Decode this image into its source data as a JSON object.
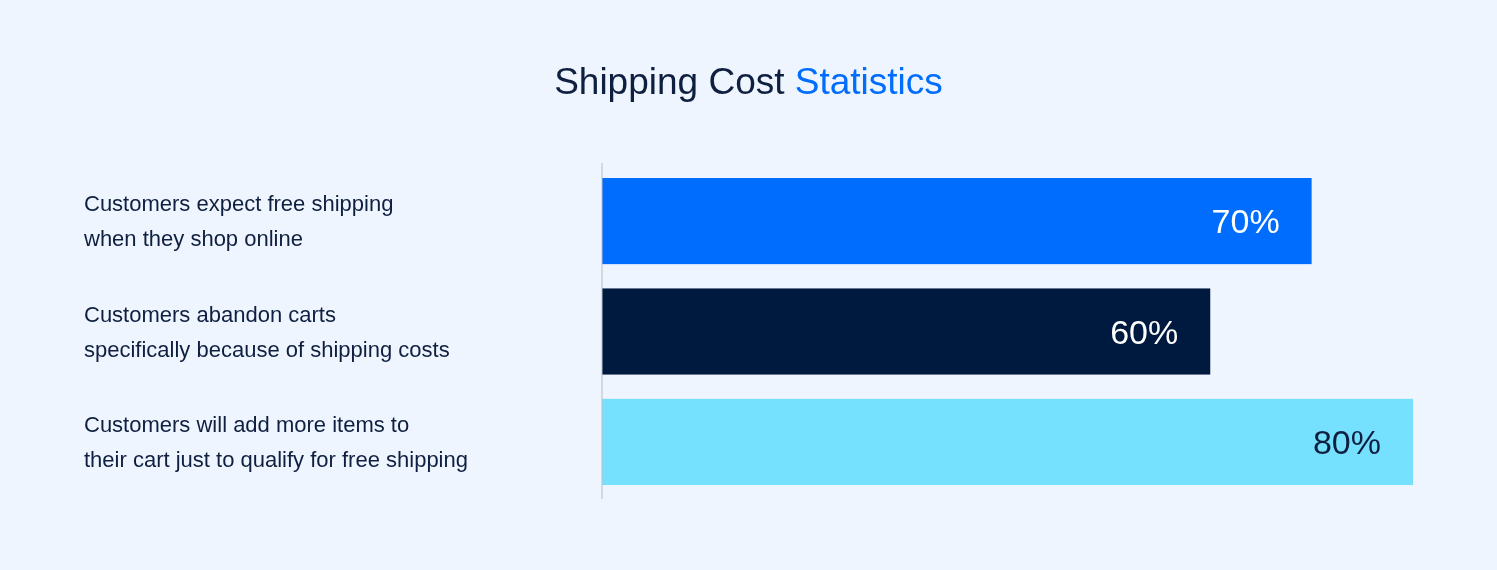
{
  "chart_data": {
    "type": "bar",
    "orientation": "horizontal",
    "title": "Shipping Cost Statistics",
    "categories": [
      "Customers expect free shipping\nwhen they shop online",
      "Customers abandon carts\nspecifically because of shipping costs",
      "Customers will add more items to\ntheir cart just to qualify for free shipping"
    ],
    "values": [
      70,
      60,
      80
    ],
    "colors": [
      "#006dff",
      "#001a3f",
      "#76e0ff"
    ],
    "value_labels": [
      "70%",
      "60%",
      "80%"
    ]
  }
}
